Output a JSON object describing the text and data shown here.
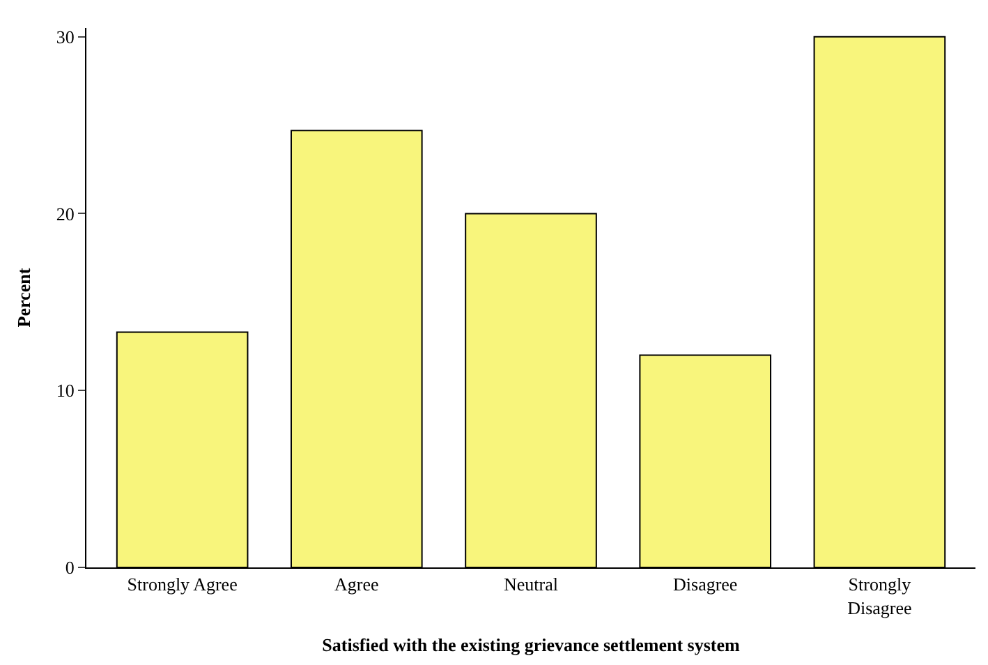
{
  "chart_data": {
    "type": "bar",
    "xlabel": "Satisfied with the existing grievance settlement system",
    "ylabel": "Percent",
    "categories": [
      "Strongly Agree",
      "Agree",
      "Neutral",
      "Disagree",
      "Strongly Disagree"
    ],
    "values": [
      13.3,
      24.7,
      20.0,
      12.0,
      30.0
    ],
    "color": "#f8f57c",
    "ylim": [
      0,
      30.5
    ],
    "yticks": [
      0,
      10,
      20,
      30
    ],
    "legend": false
  }
}
